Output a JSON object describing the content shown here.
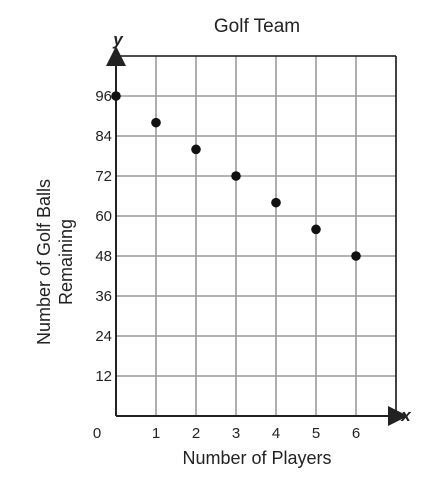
{
  "chart_data": {
    "type": "scatter",
    "title": "Golf Team",
    "xlabel": "Number of Players",
    "ylabel": [
      "Number of Golf Balls",
      "Remaining"
    ],
    "x_axis_var": "x",
    "y_axis_var": "y",
    "x": [
      0,
      1,
      2,
      3,
      4,
      5,
      6
    ],
    "y": [
      96,
      88,
      80,
      72,
      64,
      56,
      48
    ],
    "xlim": [
      0,
      7
    ],
    "ylim": [
      0,
      108
    ],
    "x_ticks": [
      0,
      1,
      2,
      3,
      4,
      5,
      6
    ],
    "y_ticks": [
      12,
      24,
      36,
      48,
      60,
      72,
      84,
      96
    ],
    "origin_label": "0",
    "grid": true,
    "colors": {
      "grid": "#9a9a9a",
      "axis": "#222222",
      "point": "#111111"
    }
  }
}
